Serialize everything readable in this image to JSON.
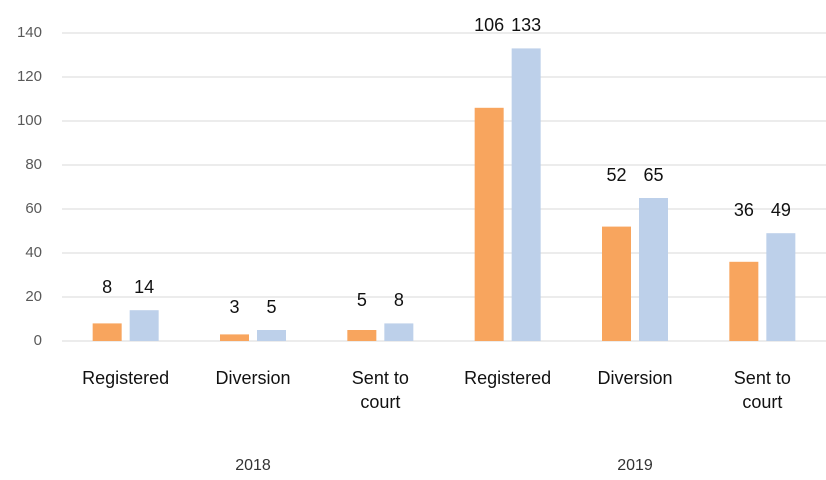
{
  "chart_data": {
    "type": "bar",
    "categories": [
      "Registered",
      "Diversion",
      "Sent to court",
      "Registered",
      "Diversion",
      "Sent to court"
    ],
    "groups": [
      "2018",
      "2019"
    ],
    "series": [
      {
        "color": "#f8a55e",
        "values": [
          8,
          3,
          5,
          106,
          52,
          36
        ]
      },
      {
        "color": "#bdd0ea",
        "values": [
          14,
          5,
          8,
          133,
          65,
          49
        ]
      }
    ],
    "ylim": [
      0,
      140
    ],
    "yticks": [
      0,
      20,
      40,
      60,
      80,
      100,
      120,
      140
    ],
    "grid": true
  }
}
